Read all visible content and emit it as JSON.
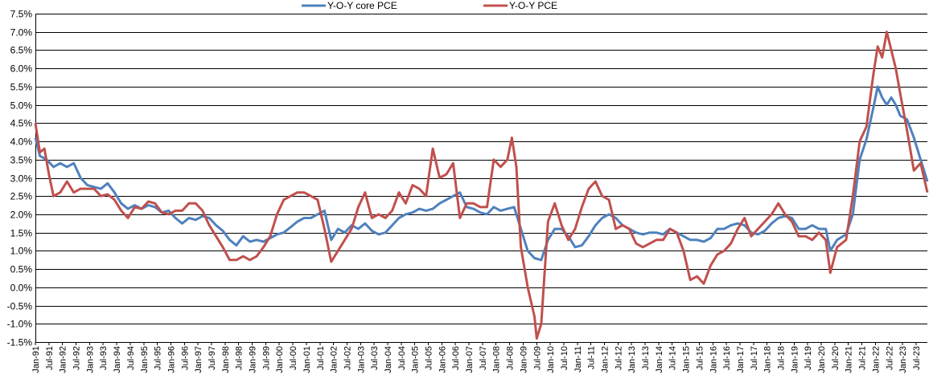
{
  "chart_data": {
    "type": "line",
    "title": "",
    "xlabel": "",
    "ylabel": "",
    "ylim": [
      -0.015,
      0.075
    ],
    "y_ticks": [
      "7.5%",
      "7.0%",
      "6.5%",
      "6.0%",
      "5.5%",
      "5.0%",
      "4.5%",
      "4.0%",
      "3.5%",
      "3.0%",
      "2.5%",
      "2.0%",
      "1.5%",
      "1.0%",
      "0.5%",
      "0.0%",
      "-0.5%",
      "-1.0%",
      "-1.5%"
    ],
    "x_start": "1991-01",
    "x_end": "2023-12",
    "x_ticks": [
      "Jan-91",
      "Jul-91",
      "Jan-92",
      "Jul-92",
      "Jan-93",
      "Jul-93",
      "Jan-94",
      "Jul-94",
      "Jan-95",
      "Jul-95",
      "Jan-96",
      "Jul-96",
      "Jan-97",
      "Jul-97",
      "Jan-98",
      "Jul-98",
      "Jan-99",
      "Jul-99",
      "Jan-00",
      "Jul-00",
      "Jan-01",
      "Jul-01",
      "Jan-02",
      "Jul-02",
      "Jan-03",
      "Jul-03",
      "Jan-04",
      "Jul-04",
      "Jan-05",
      "Jul-05",
      "Jan-06",
      "Jul-06",
      "Jan-07",
      "Jul-07",
      "Jan-08",
      "Jul-08",
      "Jan-09",
      "Jul-09",
      "Jan-10",
      "Jul-10",
      "Jan-11",
      "Jul-11",
      "Jan-12",
      "Jul-12",
      "Jan-13",
      "Jul-13",
      "Jan-14",
      "Jul-14",
      "Jan-15",
      "Jul-15",
      "Jan-16",
      "Jul-16",
      "Jan-17",
      "Jul-17",
      "Jan-18",
      "Jul-18",
      "Jan-19",
      "Jul-19",
      "Jan-20",
      "Jul-20",
      "Jan-21",
      "Jul-21",
      "Jan-22",
      "Jul-22",
      "Jan-23",
      "Jul-23"
    ],
    "grid": true,
    "legend_position": "top",
    "series": [
      {
        "name": "Y-O-Y core PCE",
        "color": "#4F81BD",
        "points": [
          [
            "1991-01",
            0.041
          ],
          [
            "1991-03",
            0.036
          ],
          [
            "1991-06",
            0.035
          ],
          [
            "1991-09",
            0.033
          ],
          [
            "1991-12",
            0.034
          ],
          [
            "1992-03",
            0.033
          ],
          [
            "1992-06",
            0.034
          ],
          [
            "1992-09",
            0.03
          ],
          [
            "1992-12",
            0.028
          ],
          [
            "1993-03",
            0.0275
          ],
          [
            "1993-06",
            0.027
          ],
          [
            "1993-09",
            0.0285
          ],
          [
            "1993-12",
            0.026
          ],
          [
            "1994-03",
            0.023
          ],
          [
            "1994-06",
            0.0215
          ],
          [
            "1994-09",
            0.0225
          ],
          [
            "1994-12",
            0.0215
          ],
          [
            "1995-03",
            0.0225
          ],
          [
            "1995-06",
            0.022
          ],
          [
            "1995-09",
            0.0205
          ],
          [
            "1995-12",
            0.021
          ],
          [
            "1996-03",
            0.019
          ],
          [
            "1996-06",
            0.0175
          ],
          [
            "1996-09",
            0.019
          ],
          [
            "1996-12",
            0.0185
          ],
          [
            "1997-03",
            0.0195
          ],
          [
            "1997-06",
            0.019
          ],
          [
            "1997-09",
            0.017
          ],
          [
            "1997-12",
            0.0155
          ],
          [
            "1998-03",
            0.013
          ],
          [
            "1998-06",
            0.0115
          ],
          [
            "1998-09",
            0.014
          ],
          [
            "1998-12",
            0.0125
          ],
          [
            "1999-03",
            0.013
          ],
          [
            "1999-06",
            0.0125
          ],
          [
            "1999-09",
            0.0135
          ],
          [
            "1999-12",
            0.0145
          ],
          [
            "2000-03",
            0.015
          ],
          [
            "2000-06",
            0.0165
          ],
          [
            "2000-09",
            0.018
          ],
          [
            "2000-12",
            0.019
          ],
          [
            "2001-03",
            0.019
          ],
          [
            "2001-06",
            0.02
          ],
          [
            "2001-09",
            0.021
          ],
          [
            "2001-12",
            0.013
          ],
          [
            "2002-03",
            0.016
          ],
          [
            "2002-06",
            0.015
          ],
          [
            "2002-09",
            0.017
          ],
          [
            "2002-12",
            0.016
          ],
          [
            "2003-03",
            0.0175
          ],
          [
            "2003-06",
            0.0155
          ],
          [
            "2003-09",
            0.0145
          ],
          [
            "2003-12",
            0.015
          ],
          [
            "2004-03",
            0.017
          ],
          [
            "2004-06",
            0.019
          ],
          [
            "2004-09",
            0.02
          ],
          [
            "2004-12",
            0.0205
          ],
          [
            "2005-03",
            0.0215
          ],
          [
            "2005-06",
            0.021
          ],
          [
            "2005-09",
            0.0215
          ],
          [
            "2005-12",
            0.023
          ],
          [
            "2006-03",
            0.024
          ],
          [
            "2006-06",
            0.025
          ],
          [
            "2006-09",
            0.026
          ],
          [
            "2006-12",
            0.022
          ],
          [
            "2007-03",
            0.0215
          ],
          [
            "2007-06",
            0.0205
          ],
          [
            "2007-09",
            0.02
          ],
          [
            "2007-12",
            0.022
          ],
          [
            "2008-03",
            0.021
          ],
          [
            "2008-06",
            0.0215
          ],
          [
            "2008-09",
            0.022
          ],
          [
            "2008-12",
            0.016
          ],
          [
            "2009-03",
            0.01
          ],
          [
            "2009-06",
            0.008
          ],
          [
            "2009-09",
            0.0075
          ],
          [
            "2009-12",
            0.013
          ],
          [
            "2010-03",
            0.016
          ],
          [
            "2010-06",
            0.016
          ],
          [
            "2010-09",
            0.014
          ],
          [
            "2010-12",
            0.011
          ],
          [
            "2011-03",
            0.0115
          ],
          [
            "2011-06",
            0.014
          ],
          [
            "2011-09",
            0.017
          ],
          [
            "2011-12",
            0.019
          ],
          [
            "2012-03",
            0.02
          ],
          [
            "2012-06",
            0.019
          ],
          [
            "2012-09",
            0.017
          ],
          [
            "2012-12",
            0.016
          ],
          [
            "2013-03",
            0.015
          ],
          [
            "2013-06",
            0.0145
          ],
          [
            "2013-09",
            0.015
          ],
          [
            "2013-12",
            0.015
          ],
          [
            "2014-03",
            0.0145
          ],
          [
            "2014-06",
            0.016
          ],
          [
            "2014-09",
            0.015
          ],
          [
            "2014-12",
            0.014
          ],
          [
            "2015-03",
            0.013
          ],
          [
            "2015-06",
            0.013
          ],
          [
            "2015-09",
            0.0125
          ],
          [
            "2015-12",
            0.0135
          ],
          [
            "2016-03",
            0.016
          ],
          [
            "2016-06",
            0.016
          ],
          [
            "2016-09",
            0.017
          ],
          [
            "2016-12",
            0.0175
          ],
          [
            "2017-03",
            0.017
          ],
          [
            "2017-06",
            0.015
          ],
          [
            "2017-09",
            0.0145
          ],
          [
            "2017-12",
            0.0155
          ],
          [
            "2018-03",
            0.0175
          ],
          [
            "2018-06",
            0.019
          ],
          [
            "2018-09",
            0.0195
          ],
          [
            "2018-12",
            0.019
          ],
          [
            "2019-03",
            0.016
          ],
          [
            "2019-06",
            0.016
          ],
          [
            "2019-09",
            0.017
          ],
          [
            "2019-12",
            0.016
          ],
          [
            "2020-03",
            0.016
          ],
          [
            "2020-05",
            0.01
          ],
          [
            "2020-08",
            0.013
          ],
          [
            "2020-12",
            0.0145
          ],
          [
            "2021-03",
            0.02
          ],
          [
            "2021-06",
            0.035
          ],
          [
            "2021-09",
            0.0405
          ],
          [
            "2021-12",
            0.049
          ],
          [
            "2022-02",
            0.055
          ],
          [
            "2022-04",
            0.052
          ],
          [
            "2022-06",
            0.05
          ],
          [
            "2022-08",
            0.052
          ],
          [
            "2022-10",
            0.05
          ],
          [
            "2022-12",
            0.047
          ],
          [
            "2023-03",
            0.046
          ],
          [
            "2023-06",
            0.041
          ],
          [
            "2023-09",
            0.035
          ],
          [
            "2023-12",
            0.029
          ]
        ]
      },
      {
        "name": "Y-O-Y PCE",
        "color": "#C0504D",
        "points": [
          [
            "1991-01",
            0.045
          ],
          [
            "1991-03",
            0.037
          ],
          [
            "1991-05",
            0.038
          ],
          [
            "1991-07",
            0.031
          ],
          [
            "1991-09",
            0.025
          ],
          [
            "1991-12",
            0.026
          ],
          [
            "1992-03",
            0.029
          ],
          [
            "1992-06",
            0.026
          ],
          [
            "1992-09",
            0.027
          ],
          [
            "1992-12",
            0.027
          ],
          [
            "1993-03",
            0.027
          ],
          [
            "1993-06",
            0.025
          ],
          [
            "1993-09",
            0.0255
          ],
          [
            "1993-12",
            0.024
          ],
          [
            "1994-03",
            0.021
          ],
          [
            "1994-06",
            0.019
          ],
          [
            "1994-09",
            0.022
          ],
          [
            "1994-12",
            0.0215
          ],
          [
            "1995-03",
            0.0235
          ],
          [
            "1995-06",
            0.023
          ],
          [
            "1995-09",
            0.0205
          ],
          [
            "1995-12",
            0.02
          ],
          [
            "1996-03",
            0.021
          ],
          [
            "1996-06",
            0.021
          ],
          [
            "1996-09",
            0.023
          ],
          [
            "1996-12",
            0.023
          ],
          [
            "1997-03",
            0.021
          ],
          [
            "1997-06",
            0.017
          ],
          [
            "1997-09",
            0.014
          ],
          [
            "1997-12",
            0.011
          ],
          [
            "1998-03",
            0.0075
          ],
          [
            "1998-06",
            0.0075
          ],
          [
            "1998-09",
            0.0085
          ],
          [
            "1998-12",
            0.0075
          ],
          [
            "1999-03",
            0.0085
          ],
          [
            "1999-06",
            0.011
          ],
          [
            "1999-09",
            0.014
          ],
          [
            "1999-12",
            0.02
          ],
          [
            "2000-03",
            0.024
          ],
          [
            "2000-06",
            0.025
          ],
          [
            "2000-09",
            0.026
          ],
          [
            "2000-12",
            0.026
          ],
          [
            "2001-03",
            0.025
          ],
          [
            "2001-06",
            0.024
          ],
          [
            "2001-09",
            0.016
          ],
          [
            "2001-12",
            0.007
          ],
          [
            "2002-03",
            0.01
          ],
          [
            "2002-06",
            0.013
          ],
          [
            "2002-09",
            0.016
          ],
          [
            "2002-12",
            0.022
          ],
          [
            "2003-03",
            0.026
          ],
          [
            "2003-06",
            0.019
          ],
          [
            "2003-09",
            0.02
          ],
          [
            "2003-12",
            0.019
          ],
          [
            "2004-03",
            0.021
          ],
          [
            "2004-06",
            0.026
          ],
          [
            "2004-09",
            0.023
          ],
          [
            "2004-12",
            0.028
          ],
          [
            "2005-03",
            0.027
          ],
          [
            "2005-06",
            0.025
          ],
          [
            "2005-09",
            0.038
          ],
          [
            "2005-12",
            0.03
          ],
          [
            "2006-03",
            0.031
          ],
          [
            "2006-06",
            0.034
          ],
          [
            "2006-09",
            0.019
          ],
          [
            "2006-12",
            0.023
          ],
          [
            "2007-03",
            0.023
          ],
          [
            "2007-06",
            0.022
          ],
          [
            "2007-09",
            0.022
          ],
          [
            "2007-12",
            0.035
          ],
          [
            "2008-03",
            0.033
          ],
          [
            "2008-06",
            0.035
          ],
          [
            "2008-08",
            0.041
          ],
          [
            "2008-10",
            0.033
          ],
          [
            "2008-12",
            0.011
          ],
          [
            "2009-03",
            0.0
          ],
          [
            "2009-06",
            -0.008
          ],
          [
            "2009-07",
            -0.014
          ],
          [
            "2009-09",
            -0.01
          ],
          [
            "2009-12",
            0.018
          ],
          [
            "2010-03",
            0.023
          ],
          [
            "2010-06",
            0.017
          ],
          [
            "2010-09",
            0.013
          ],
          [
            "2010-12",
            0.016
          ],
          [
            "2011-03",
            0.022
          ],
          [
            "2011-06",
            0.027
          ],
          [
            "2011-09",
            0.029
          ],
          [
            "2011-12",
            0.025
          ],
          [
            "2012-03",
            0.024
          ],
          [
            "2012-06",
            0.016
          ],
          [
            "2012-09",
            0.017
          ],
          [
            "2012-12",
            0.016
          ],
          [
            "2013-03",
            0.012
          ],
          [
            "2013-06",
            0.011
          ],
          [
            "2013-09",
            0.012
          ],
          [
            "2013-12",
            0.013
          ],
          [
            "2014-03",
            0.013
          ],
          [
            "2014-06",
            0.016
          ],
          [
            "2014-09",
            0.015
          ],
          [
            "2014-12",
            0.01
          ],
          [
            "2015-03",
            0.002
          ],
          [
            "2015-06",
            0.003
          ],
          [
            "2015-09",
            0.001
          ],
          [
            "2015-12",
            0.006
          ],
          [
            "2016-03",
            0.009
          ],
          [
            "2016-06",
            0.01
          ],
          [
            "2016-09",
            0.012
          ],
          [
            "2016-12",
            0.016
          ],
          [
            "2017-03",
            0.019
          ],
          [
            "2017-06",
            0.014
          ],
          [
            "2017-09",
            0.016
          ],
          [
            "2017-12",
            0.018
          ],
          [
            "2018-03",
            0.02
          ],
          [
            "2018-06",
            0.023
          ],
          [
            "2018-09",
            0.02
          ],
          [
            "2018-12",
            0.018
          ],
          [
            "2019-03",
            0.014
          ],
          [
            "2019-06",
            0.014
          ],
          [
            "2019-09",
            0.013
          ],
          [
            "2019-12",
            0.015
          ],
          [
            "2020-03",
            0.013
          ],
          [
            "2020-05",
            0.004
          ],
          [
            "2020-08",
            0.011
          ],
          [
            "2020-12",
            0.013
          ],
          [
            "2021-03",
            0.025
          ],
          [
            "2021-06",
            0.04
          ],
          [
            "2021-09",
            0.044
          ],
          [
            "2021-12",
            0.058
          ],
          [
            "2022-02",
            0.066
          ],
          [
            "2022-04",
            0.063
          ],
          [
            "2022-06",
            0.07
          ],
          [
            "2022-08",
            0.065
          ],
          [
            "2022-10",
            0.06
          ],
          [
            "2022-12",
            0.053
          ],
          [
            "2023-03",
            0.043
          ],
          [
            "2023-06",
            0.032
          ],
          [
            "2023-09",
            0.034
          ],
          [
            "2023-12",
            0.026
          ]
        ]
      }
    ]
  }
}
